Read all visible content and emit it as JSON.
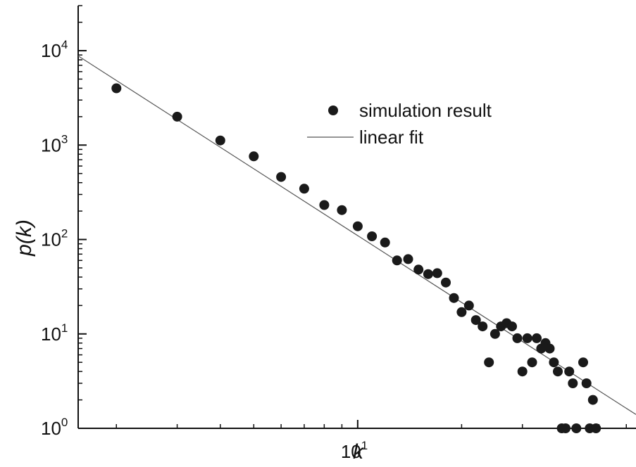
{
  "chart_data": {
    "type": "scatter",
    "title": "",
    "xlabel": "k",
    "ylabel": "p(k)",
    "x_scale": "log",
    "y_scale": "log",
    "xlim": [
      1.55,
      64
    ],
    "ylim": [
      1,
      30000
    ],
    "x_tick_labels": [
      {
        "value": 10,
        "base": "10",
        "exp": "1"
      }
    ],
    "y_tick_labels": [
      {
        "value": 1,
        "base": "10",
        "exp": "0"
      },
      {
        "value": 10,
        "base": "10",
        "exp": "1"
      },
      {
        "value": 100,
        "base": "10",
        "exp": "2"
      },
      {
        "value": 1000,
        "base": "10",
        "exp": "3"
      },
      {
        "value": 10000,
        "base": "10",
        "exp": "4"
      }
    ],
    "legend_position": "top-right",
    "legend": {
      "points_label": "simulation result",
      "line_label": "linear fit"
    },
    "series": [
      {
        "name": "simulation result",
        "kind": "points",
        "color": "#1a1a1a",
        "points": [
          [
            2,
            4000
          ],
          [
            3,
            2000
          ],
          [
            4,
            1120
          ],
          [
            5,
            760
          ],
          [
            6,
            460
          ],
          [
            7,
            345
          ],
          [
            8,
            232
          ],
          [
            9,
            205
          ],
          [
            10,
            138
          ],
          [
            11,
            108
          ],
          [
            12,
            93
          ],
          [
            13,
            60
          ],
          [
            14,
            62
          ],
          [
            15,
            48
          ],
          [
            16,
            43
          ],
          [
            17,
            44
          ],
          [
            18,
            35
          ],
          [
            19,
            24
          ],
          [
            20,
            17
          ],
          [
            21,
            20
          ],
          [
            22,
            14
          ],
          [
            23,
            12
          ],
          [
            24,
            5
          ],
          [
            25,
            10
          ],
          [
            26,
            12
          ],
          [
            27,
            13
          ],
          [
            28,
            12
          ],
          [
            29,
            9
          ],
          [
            30,
            4
          ],
          [
            31,
            9
          ],
          [
            32,
            5
          ],
          [
            33,
            9
          ],
          [
            34,
            7
          ],
          [
            35,
            8
          ],
          [
            36,
            7
          ],
          [
            37,
            5
          ],
          [
            38,
            4
          ],
          [
            39,
            1
          ],
          [
            40,
            1
          ],
          [
            41,
            4
          ],
          [
            42,
            3
          ],
          [
            43,
            1
          ],
          [
            45,
            5
          ],
          [
            46,
            3
          ],
          [
            47,
            1
          ],
          [
            48,
            2
          ],
          [
            49,
            1
          ]
        ]
      },
      {
        "name": "linear fit",
        "kind": "line",
        "color": "#555555",
        "points": [
          [
            1.55,
            8800
          ],
          [
            64,
            1.4
          ]
        ]
      }
    ]
  }
}
